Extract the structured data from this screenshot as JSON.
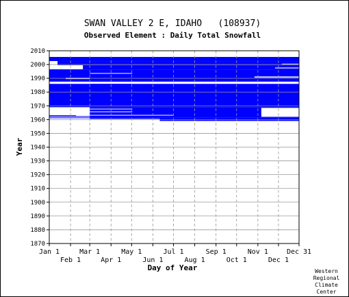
{
  "chart_data": {
    "type": "heatmap",
    "title": "SWAN VALLEY 2 E, IDAHO   (108937)",
    "subtitle": "Observed Element : Daily Total Snowfall",
    "xlabel": "Day of Year",
    "ylabel": "Year",
    "ylim": [
      1870,
      2010
    ],
    "y_ticks": [
      1870,
      1880,
      1890,
      1900,
      1910,
      1920,
      1930,
      1940,
      1950,
      1960,
      1970,
      1980,
      1990,
      2000,
      2010
    ],
    "x_ticks_top_row": [
      {
        "label": "Jan 1",
        "day": 1
      },
      {
        "label": "Mar 1",
        "day": 60
      },
      {
        "label": "May 1",
        "day": 121
      },
      {
        "label": "Jul 1",
        "day": 182
      },
      {
        "label": "Sep 1",
        "day": 244
      },
      {
        "label": "Nov 1",
        "day": 305
      },
      {
        "label": "Dec 31",
        "day": 365
      }
    ],
    "x_ticks_bottom_row": [
      {
        "label": "Feb 1",
        "day": 32
      },
      {
        "label": "Apr 1",
        "day": 91
      },
      {
        "label": "Jun 1",
        "day": 152
      },
      {
        "label": "Aug 1",
        "day": 213
      },
      {
        "label": "Oct 1",
        "day": 274
      },
      {
        "label": "Dec 1",
        "day": 335
      }
    ],
    "grid": true,
    "data_color": "#0000ff",
    "observed_years": [
      1959,
      2005
    ],
    "observed_blocks": [
      {
        "day_start": 1,
        "day_end": 365,
        "year_start": 1969,
        "year_end": 1986
      },
      {
        "day_start": 1,
        "day_end": 365,
        "year_start": 1987.5,
        "year_end": 1996.5
      },
      {
        "day_start": 1,
        "day_end": 365,
        "year_start": 2002.5,
        "year_end": 2005.5
      },
      {
        "day_start": 60,
        "day_end": 365,
        "year_start": 1961.5,
        "year_end": 1969
      },
      {
        "day_start": 13,
        "day_end": 365,
        "year_start": 1999.5,
        "year_end": 2002.5
      },
      {
        "day_start": 50,
        "day_end": 365,
        "year_start": 1996.5,
        "year_end": 1999.5
      },
      {
        "day_start": 1,
        "day_end": 60,
        "year_start": 1962,
        "year_end": 1962.5
      },
      {
        "day_start": 1,
        "day_end": 60,
        "year_start": 1961,
        "year_end": 1961.5
      },
      {
        "day_start": 1,
        "day_end": 40,
        "year_start": 1962.6,
        "year_end": 1963.1
      },
      {
        "day_start": 60,
        "day_end": 162,
        "year_start": 1960.5,
        "year_end": 1961.5
      },
      {
        "day_start": 162,
        "day_end": 365,
        "year_start": 1959,
        "year_end": 1961.5
      }
    ],
    "gaps": [
      {
        "day_start": 60,
        "day_end": 182,
        "year_start": 1962.9,
        "year_end": 1963.4
      },
      {
        "day_start": 60,
        "day_end": 122,
        "year_start": 1965.5,
        "year_end": 1965.9
      },
      {
        "day_start": 60,
        "day_end": 122,
        "year_start": 1967.5,
        "year_end": 1967.9
      },
      {
        "day_start": 310,
        "day_end": 365,
        "year_start": 1962,
        "year_end": 1968.5
      },
      {
        "day_start": 120,
        "day_end": 365,
        "year_start": 1986,
        "year_end": 1987.5
      },
      {
        "day_start": 1,
        "day_end": 60,
        "year_start": 1986,
        "year_end": 1987.5
      },
      {
        "day_start": 25,
        "day_end": 60,
        "year_start": 1989.5,
        "year_end": 1990.3
      },
      {
        "day_start": 300,
        "day_end": 365,
        "year_start": 1990.5,
        "year_end": 1991.3
      },
      {
        "day_start": 340,
        "day_end": 365,
        "year_start": 2000,
        "year_end": 2000.6
      },
      {
        "day_start": 330,
        "day_end": 365,
        "year_start": 1997.2,
        "year_end": 1997.8
      },
      {
        "day_start": 60,
        "day_end": 122,
        "year_start": 1993.4,
        "year_end": 1993.8
      },
      {
        "day_start": 1,
        "day_end": 12,
        "year_start": 2002,
        "year_end": 2002.4
      }
    ]
  },
  "credit": [
    "Western",
    "Regional",
    "Climate",
    "Center"
  ]
}
